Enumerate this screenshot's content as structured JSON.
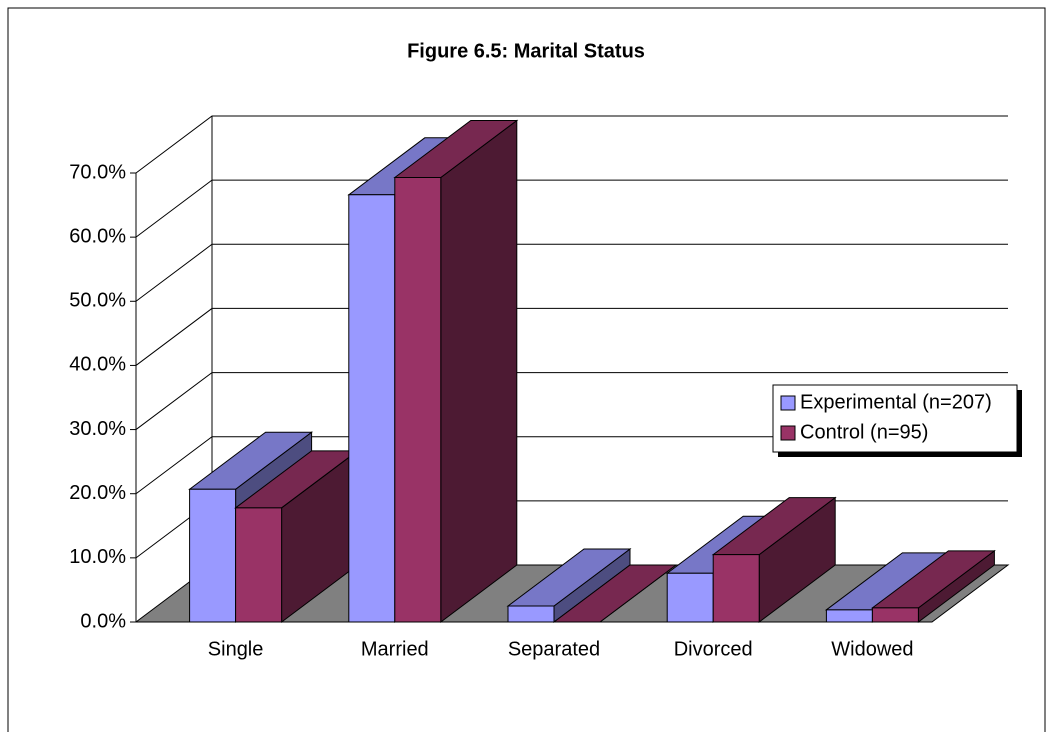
{
  "chart_data": {
    "type": "bar3d",
    "title": "Figure 6.5: Marital Status",
    "categories": [
      "Single",
      "Married",
      "Separated",
      "Divorced",
      "Widowed"
    ],
    "series": [
      {
        "name": "Experimental (n=207)",
        "color": "#9999ff",
        "values": [
          20.7,
          66.6,
          2.5,
          7.6,
          1.9
        ]
      },
      {
        "name": "Control (n=95)",
        "color": "#993366",
        "values": [
          17.8,
          69.3,
          0,
          10.5,
          2.2
        ]
      }
    ],
    "ylim": [
      0,
      70
    ],
    "yticks": [
      {
        "value": 0,
        "label": "0.0%"
      },
      {
        "value": 10,
        "label": "10.0%"
      },
      {
        "value": 20,
        "label": "20.0%"
      },
      {
        "value": 30,
        "label": "30.0%"
      },
      {
        "value": 40,
        "label": "40.0%"
      },
      {
        "value": 50,
        "label": "50.0%"
      },
      {
        "value": 60,
        "label": "60.0%"
      },
      {
        "value": 70,
        "label": "70.0%"
      }
    ],
    "grid": true,
    "legend": "right"
  }
}
